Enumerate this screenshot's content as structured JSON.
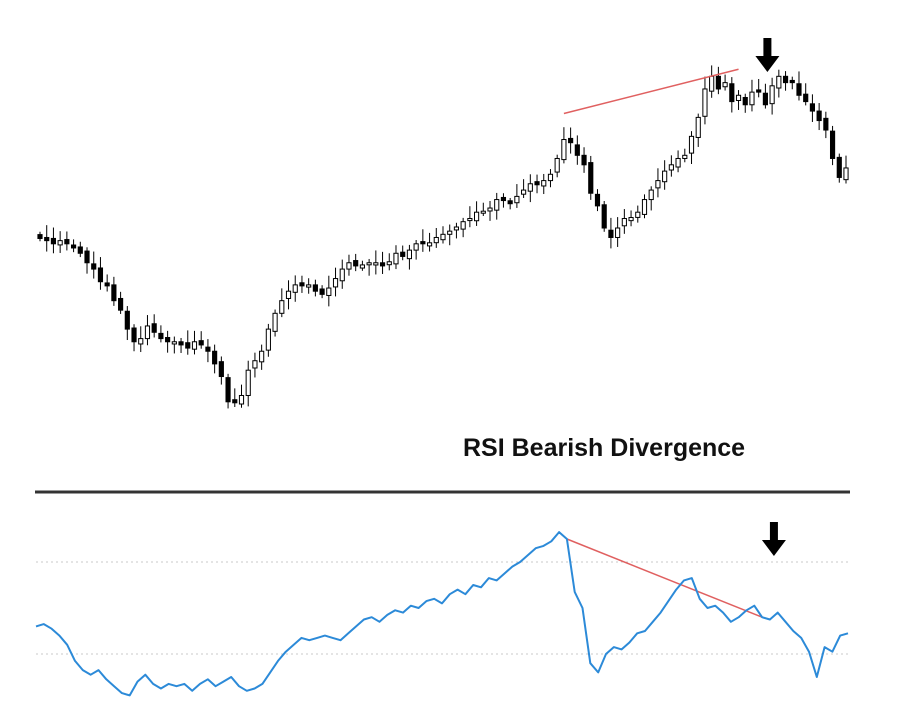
{
  "title": "RSI Bearish Divergence",
  "colors": {
    "candle_outline": "#000000",
    "bull_fill": "#ffffff",
    "bear_fill": "#000000",
    "divergence_line": "#e06060",
    "rsi_line": "#2c8ad8",
    "rsi_levels": "#c8c8c8",
    "separator": "#333333",
    "arrow": "#000000"
  },
  "chart_data": [
    {
      "type": "candlestick",
      "title": "RSI Bearish Divergence",
      "xlabel": "",
      "ylabel": "",
      "grid": false,
      "ylim": [
        0,
        100
      ],
      "closes": [
        72,
        71,
        70,
        71,
        70,
        69,
        67,
        64,
        62,
        58,
        57,
        52,
        49,
        43,
        39,
        40,
        44,
        42,
        40,
        39,
        39,
        38,
        37,
        39,
        38,
        36,
        32,
        28,
        20,
        20,
        22,
        30,
        33,
        36,
        43,
        48,
        52,
        55,
        57,
        57,
        57,
        55,
        54,
        56,
        59,
        62,
        64,
        63,
        63,
        64,
        64,
        63,
        64,
        67,
        66,
        68,
        70,
        70,
        70,
        72,
        73,
        74,
        75,
        77,
        78,
        80,
        80,
        81,
        84,
        84,
        83,
        85,
        87,
        89,
        89,
        90,
        92,
        97,
        103,
        102,
        98,
        95,
        86,
        82,
        75,
        72,
        75,
        78,
        78,
        80,
        84,
        87,
        90,
        93,
        95,
        97,
        98,
        104,
        110,
        119,
        123,
        119,
        121,
        115,
        117,
        114,
        118,
        118,
        114,
        120,
        123,
        121,
        121,
        117,
        115,
        112,
        109,
        106,
        97,
        91,
        94
      ],
      "annotations": [
        {
          "type": "divergence-line",
          "from_index": 78,
          "to_index": 104,
          "direction": "higher-high"
        },
        {
          "type": "arrow-down",
          "at_index": 108
        }
      ]
    },
    {
      "type": "line",
      "title": "",
      "xlabel": "",
      "ylabel": "",
      "grid": true,
      "levels": [
        70,
        30
      ],
      "series": [
        {
          "values": [
            42,
            43,
            41,
            38,
            34,
            27,
            23,
            21,
            23,
            19,
            16,
            13,
            12,
            18,
            21,
            17,
            15,
            17,
            16,
            17,
            14,
            17,
            19,
            16,
            18,
            20,
            16,
            14,
            15,
            17,
            22,
            27,
            31,
            34,
            37,
            36,
            37,
            38,
            37,
            36,
            39,
            42,
            45,
            46,
            44,
            47,
            49,
            48,
            51,
            50,
            53,
            54,
            52,
            56,
            58,
            56,
            60,
            59,
            63,
            62,
            65,
            68,
            70,
            73,
            76,
            77,
            79,
            83,
            80,
            57,
            50,
            26,
            22,
            30,
            33,
            32,
            35,
            39,
            40,
            44,
            48,
            53,
            58,
            62,
            63,
            54,
            50,
            51,
            48,
            44,
            46,
            49,
            51,
            46,
            45,
            48,
            44,
            40,
            37,
            31,
            20,
            33,
            31,
            38,
            39
          ]
        }
      ],
      "annotations": [
        {
          "type": "divergence-line",
          "from_index": 68,
          "to_index": 93,
          "direction": "lower-high"
        },
        {
          "type": "arrow-down",
          "at_index": 94
        }
      ]
    }
  ]
}
